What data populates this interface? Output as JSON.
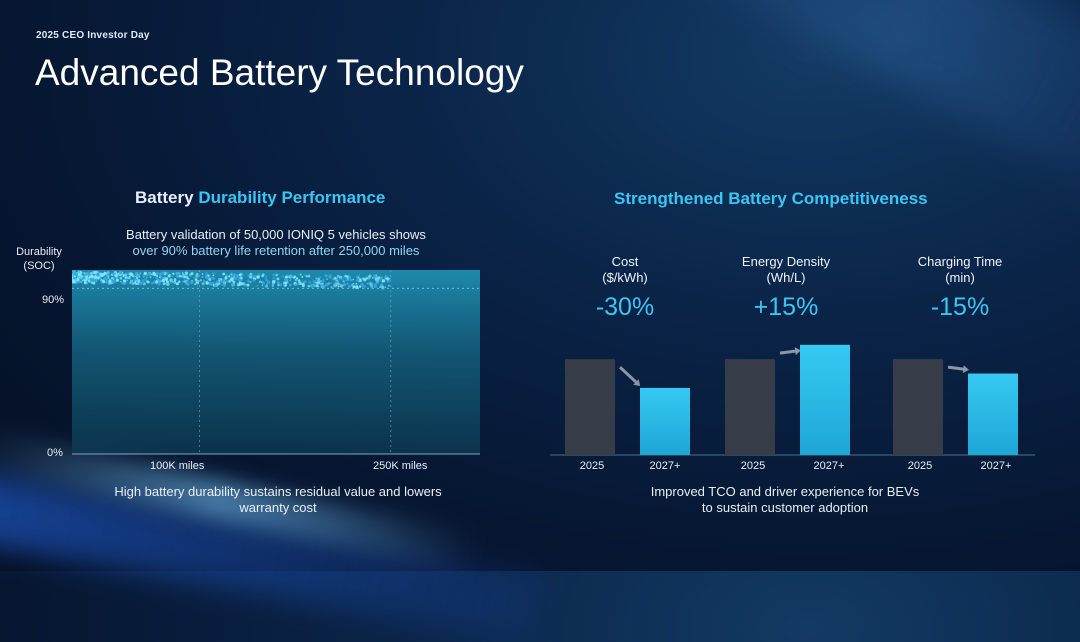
{
  "header": {
    "eyebrow": "2025 CEO Investor Day",
    "title": "Advanced Battery Technology"
  },
  "durability": {
    "title_part1": "Battery",
    "title_part2": "Durability Performance",
    "subtitle_line1": "Battery validation of 50,000 IONIQ 5 vehicles shows",
    "subtitle_line2": "over 90% battery life retention after 250,000 miles",
    "caption_line1": "High battery durability sustains residual value and lowers",
    "caption_line2": "warranty cost"
  },
  "competitiveness": {
    "title": "Strengthened Battery Competitiveness",
    "caption_line1": "Improved TCO and driver experience for BEVs",
    "caption_line2": "to sustain customer adoption",
    "metrics": [
      {
        "label_line1": "Cost",
        "label_line2": "($/kWh)",
        "change": "-30%"
      },
      {
        "label_line1": "Energy Density",
        "label_line2": "(Wh/L)",
        "change": "+15%"
      },
      {
        "label_line1": "Charging Time",
        "label_line2": "(min)",
        "change": "-15%"
      }
    ]
  },
  "colors": {
    "accent": "#38c6f4",
    "bar_2025": "#363d48",
    "bar_2027": "#2fc2ee",
    "background": "#061631"
  },
  "chart_data": [
    {
      "type": "scatter",
      "title": "Battery Durability Performance",
      "ylabel_line1": "Durability",
      "ylabel_line2": "(SOC)",
      "y_ticks": [
        "90%",
        "0%"
      ],
      "y_tick_values": [
        90,
        0
      ],
      "x_ticks": [
        "100K miles",
        "250K miles"
      ],
      "x_tick_values": [
        100000,
        250000
      ],
      "xlim": [
        0,
        320000
      ],
      "ylim": [
        0,
        100
      ],
      "grid": true,
      "point_band": {
        "x_range": [
          0,
          250000
        ],
        "soc_range": [
          90,
          99
        ]
      }
    },
    {
      "type": "bar",
      "title": "Cost ($/kWh)",
      "categories": [
        "2025",
        "2027+"
      ],
      "values": [
        100,
        70
      ],
      "annotation": "-30%"
    },
    {
      "type": "bar",
      "title": "Energy Density (Wh/L)",
      "categories": [
        "2025",
        "2027+"
      ],
      "values": [
        100,
        115
      ],
      "annotation": "+15%"
    },
    {
      "type": "bar",
      "title": "Charging Time (min)",
      "categories": [
        "2025",
        "2027+"
      ],
      "values": [
        100,
        85
      ],
      "annotation": "-15%"
    }
  ]
}
